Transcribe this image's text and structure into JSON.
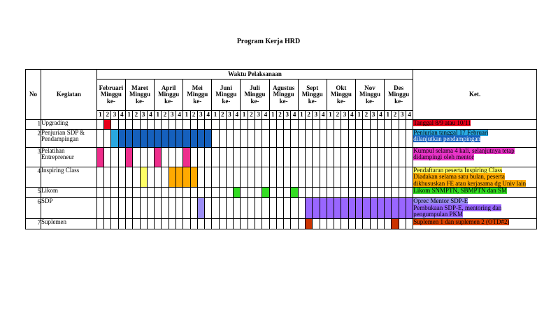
{
  "title": "Program Kerja HRD",
  "headers": {
    "no": "No",
    "kegiatan": "Kegiatan",
    "waktu": "Waktu Pelaksanaan",
    "ket": "Ket."
  },
  "months": [
    {
      "name": "Februari",
      "sub": "Minggu ke-"
    },
    {
      "name": "Maret",
      "sub": "Minggu ke-"
    },
    {
      "name": "April",
      "sub": "Minggu ke-"
    },
    {
      "name": "Mei",
      "sub": "Minggu ke-"
    },
    {
      "name": "Juni",
      "sub": "Minggu ke-"
    },
    {
      "name": "Juli",
      "sub": "Minggu ke-"
    },
    {
      "name": "Agustus",
      "sub": "Minggu ke-"
    },
    {
      "name": "Sept",
      "sub": "Minggu ke-"
    },
    {
      "name": "Okt",
      "sub": "Minggu ke-"
    },
    {
      "name": "Nov",
      "sub": "Minggu ke-"
    },
    {
      "name": "Des",
      "sub": "Minggu ke-"
    }
  ],
  "weeks": [
    "1",
    "2",
    "3",
    "4"
  ],
  "rows": [
    {
      "no": "1",
      "kegiatan": "Upgrading",
      "fills": [
        {
          "from": 2,
          "to": 2,
          "color": "#e8001a"
        }
      ],
      "ket": [
        {
          "text": "Tanggal 8/9 atau 10/11",
          "bg": "#e8001a"
        }
      ]
    },
    {
      "no": "2",
      "kegiatan": "Penjurian SDP & Pendampingan",
      "fills": [
        {
          "from": 3,
          "to": 3,
          "color": "#29a8e0"
        },
        {
          "from": 4,
          "to": 16,
          "color": "#1560bd"
        }
      ],
      "ket": [
        {
          "text": "Penjurian tanggal 17 Februari",
          "bg": "#29a8e0"
        },
        {
          "text": "dilanjutkan pendampingan",
          "bg": "#1560bd",
          "color": "#ffffff"
        }
      ]
    },
    {
      "no": "3",
      "kegiatan": "Pelatihan Entrepreneur",
      "fills": [
        {
          "from": 1,
          "to": 1,
          "color": "#ee2e8c"
        },
        {
          "from": 5,
          "to": 5,
          "color": "#ee2e8c"
        },
        {
          "from": 9,
          "to": 9,
          "color": "#ee2e8c"
        },
        {
          "from": 13,
          "to": 13,
          "color": "#ee2e8c"
        }
      ],
      "ket": [
        {
          "text": "Kumpul selama 4 kali, selanjutnya tetap didampingi oleh mentor",
          "bg": "#e934c8"
        }
      ]
    },
    {
      "no": "4",
      "kegiatan": "Inspiring Class",
      "fills": [
        {
          "from": 7,
          "to": 7,
          "color": "#ffff66"
        },
        {
          "from": 11,
          "to": 14,
          "color": "#ffaa00"
        }
      ],
      "ket": [
        {
          "text": "Pendaftaran peserta Inspiring Class",
          "bg": "#ffff66"
        },
        {
          "text": "Diadakan selama satu bulan, peserta dikhususkan FE atau kerjasama dg Univ lain",
          "bg": "#ffaa00"
        }
      ]
    },
    {
      "no": "5",
      "kegiatan": "Likom",
      "fills": [
        {
          "from": 20,
          "to": 20,
          "color": "#33dd22"
        },
        {
          "from": 24,
          "to": 24,
          "color": "#33dd22"
        },
        {
          "from": 28,
          "to": 28,
          "color": "#33dd22"
        }
      ],
      "ket": [
        {
          "text": "Likom SNMPTN, SBMPTN dan SM",
          "bg": "#33dd22"
        }
      ]
    },
    {
      "no": "6",
      "kegiatan": "SDP",
      "fills": [
        {
          "from": 15,
          "to": 15,
          "color": "#9b8df5"
        },
        {
          "from": 30,
          "to": 44,
          "color": "#9966ff"
        }
      ],
      "ket": [
        {
          "text": "Oprec Mentor SDP-E",
          "bg": "#9b8df5"
        },
        {
          "text": "Pembukaan SDP-E, mentoring dan pengumpulan PKM",
          "bg": "#9966ff"
        }
      ]
    },
    {
      "no": "7",
      "kegiatan": "Suplemen",
      "fills": [
        {
          "from": 30,
          "to": 30,
          "color": "#cc3300"
        },
        {
          "from": 42,
          "to": 42,
          "color": "#cc3300"
        }
      ],
      "ket": [
        {
          "text": "Suplemen 1 dan suplemen 2 (OTD#2)",
          "bg": "#dd4400"
        }
      ]
    }
  ]
}
